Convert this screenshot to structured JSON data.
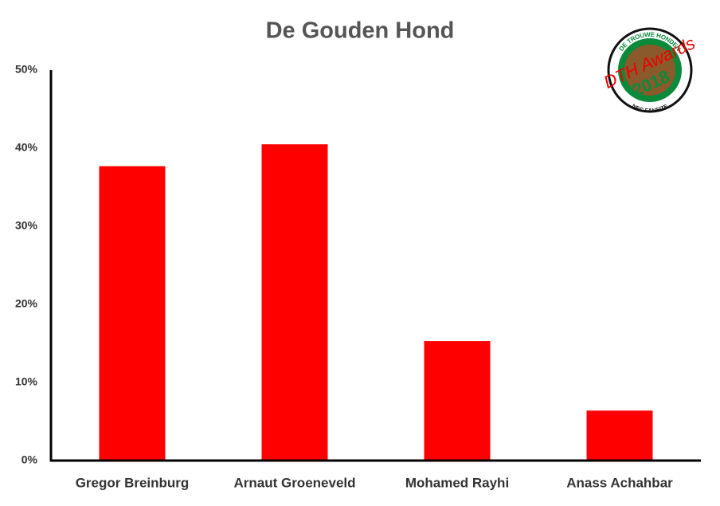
{
  "chart_data": {
    "type": "bar",
    "title": "De Gouden Hond",
    "categories": [
      "Gregor Breinburg",
      "Arnaut Groeneveld",
      "Mohamed Rayhi",
      "Anass Achahbar"
    ],
    "values": [
      37.7,
      40.5,
      15.3,
      6.4
    ],
    "color": "#ff0000",
    "ylim": [
      0,
      50
    ],
    "yticks": [
      {
        "value": 0,
        "label": "0%"
      },
      {
        "value": 10,
        "label": "10%"
      },
      {
        "value": 20,
        "label": "20%"
      },
      {
        "value": 30,
        "label": "30%"
      },
      {
        "value": 40,
        "label": "40%"
      },
      {
        "value": 50,
        "label": "50%"
      }
    ],
    "grid": false,
    "logo": {
      "top": "DE TROUWE HONDEN",
      "name": "DTH Awards",
      "year": "2018",
      "bottom": "NEC FANSITE"
    }
  }
}
